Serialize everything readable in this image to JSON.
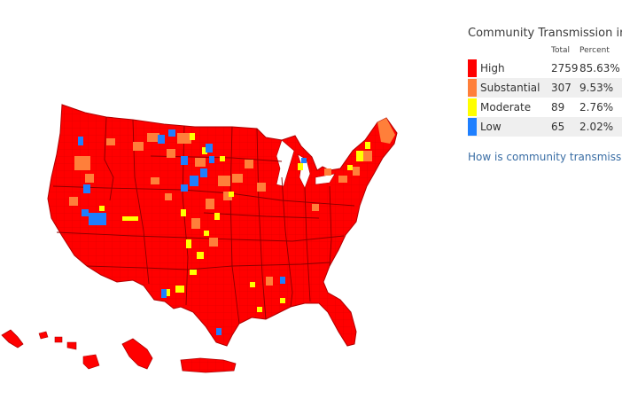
{
  "legend": {
    "title": "Community Transmission in US",
    "headers": {
      "total": "Total",
      "percent": "Percent"
    },
    "levels": [
      {
        "label": "High",
        "total": "2759",
        "percent": "85.63%",
        "color": "#ff0000"
      },
      {
        "label": "Substantial",
        "total": "307",
        "percent": "9.53%",
        "color": "#ff7f3a"
      },
      {
        "label": "Moderate",
        "total": "89",
        "percent": "2.76%",
        "color": "#ffff00"
      },
      {
        "label": "Low",
        "total": "65",
        "percent": "2.02%",
        "color": "#1e7fff"
      }
    ],
    "link_text": "How is community transmission calculated?"
  },
  "map": {
    "base_color": "#ff0000",
    "border_color": "#b00000"
  }
}
